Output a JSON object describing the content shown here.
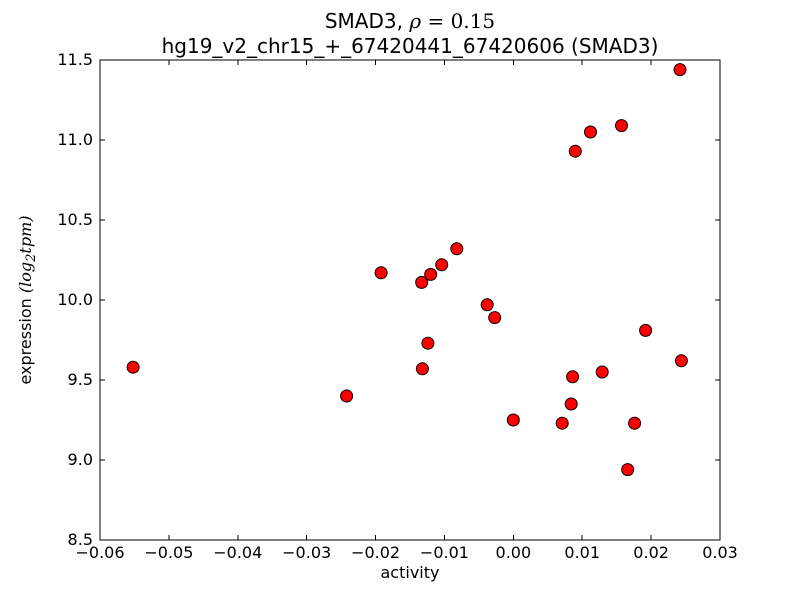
{
  "figure": {
    "background": "#ffffff",
    "frame_color": "#000000"
  },
  "chart_data": {
    "type": "scatter",
    "title": "SMAD3, ρ = 0.15",
    "title_parts": {
      "prefix": "SMAD3, ",
      "rho": "ρ",
      "eq": " = 0.15"
    },
    "subtitle": "hg19_v2_chr15_+_67420441_67420606 (SMAD3)",
    "xlabel": "activity",
    "ylabel": "expression (log2 tpm)",
    "ylabel_parts": {
      "prefix": "expression ",
      "log": "(log",
      "sub": "2",
      "rest": "tpm)"
    },
    "xlim": [
      -0.06,
      0.03
    ],
    "ylim": [
      8.5,
      11.5
    ],
    "x_tick_values": [
      -0.06,
      -0.05,
      -0.04,
      -0.03,
      -0.02,
      -0.01,
      0.0,
      0.01,
      0.02,
      0.03
    ],
    "x_tick_labels": [
      "−0.06",
      "−0.05",
      "−0.04",
      "−0.03",
      "−0.02",
      "−0.01",
      "0.00",
      "0.01",
      "0.02",
      "0.03"
    ],
    "y_tick_values": [
      8.5,
      9.0,
      9.5,
      10.0,
      10.5,
      11.0,
      11.5
    ],
    "y_tick_labels": [
      "8.5",
      "9.0",
      "9.5",
      "10.0",
      "10.5",
      "11.0",
      "11.5"
    ],
    "grid": false,
    "legend": null,
    "marker": {
      "shape": "circle",
      "fill": "#ff0000",
      "edge": "#000000",
      "radius_px": 6
    },
    "points": [
      [
        -0.0552,
        9.58
      ],
      [
        -0.0242,
        9.4
      ],
      [
        -0.0192,
        10.17
      ],
      [
        -0.0133,
        10.11
      ],
      [
        -0.012,
        10.16
      ],
      [
        -0.0104,
        10.22
      ],
      [
        -0.0082,
        10.32
      ],
      [
        -0.0038,
        9.97
      ],
      [
        -0.0027,
        9.89
      ],
      [
        -0.0124,
        9.73
      ],
      [
        -0.0132,
        9.57
      ],
      [
        0.0,
        9.25
      ],
      [
        0.0071,
        9.23
      ],
      [
        0.0084,
        9.35
      ],
      [
        0.0086,
        9.52
      ],
      [
        0.0129,
        9.55
      ],
      [
        0.0176,
        9.23
      ],
      [
        0.0166,
        8.94
      ],
      [
        0.0192,
        9.81
      ],
      [
        0.0244,
        9.62
      ],
      [
        0.009,
        10.93
      ],
      [
        0.0112,
        11.05
      ],
      [
        0.0157,
        11.09
      ],
      [
        0.0242,
        11.44
      ]
    ]
  }
}
